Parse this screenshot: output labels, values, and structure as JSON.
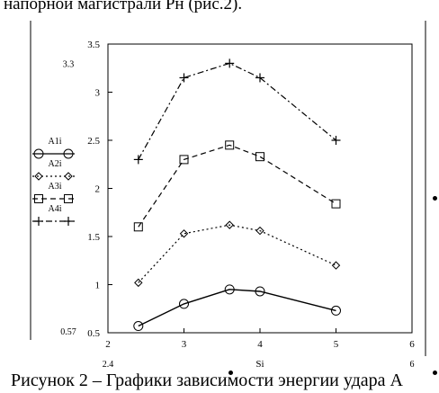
{
  "header_text": "напорной магистрали Pн (рис.2).",
  "caption": "Рисунок 2 – Графики зависимости энергии удара А",
  "chart_data": {
    "type": "line",
    "xlabel": "Si",
    "ylabel": "",
    "xlim": [
      2,
      6
    ],
    "ylim": [
      0.5,
      3.5
    ],
    "x_ticks": [
      "2",
      "3",
      "4",
      "5",
      "6"
    ],
    "y_ticks": [
      "0.5",
      "1",
      "1.5",
      "2",
      "2.5",
      "3",
      "3.5"
    ],
    "corner_labels": {
      "y_max": "3.3",
      "y_min": "0.57",
      "x_min": "2.4",
      "x_max": "6"
    },
    "x": [
      2.4,
      3.0,
      3.6,
      4.0,
      5.0
    ],
    "series": [
      {
        "name": "A1i",
        "marker": "circle",
        "dash": "solid",
        "values": [
          0.57,
          0.8,
          0.95,
          0.93,
          0.73
        ]
      },
      {
        "name": "A2i",
        "marker": "diamond",
        "dash": "dotted",
        "values": [
          1.02,
          1.53,
          1.62,
          1.56,
          1.2
        ]
      },
      {
        "name": "A3i",
        "marker": "square",
        "dash": "dashed",
        "values": [
          1.6,
          2.3,
          2.45,
          2.33,
          1.84
        ]
      },
      {
        "name": "A4i",
        "marker": "plus",
        "dash": "dash-dot",
        "values": [
          2.3,
          3.15,
          3.3,
          3.15,
          2.5
        ]
      }
    ],
    "grid": false,
    "legend_position": "left"
  }
}
